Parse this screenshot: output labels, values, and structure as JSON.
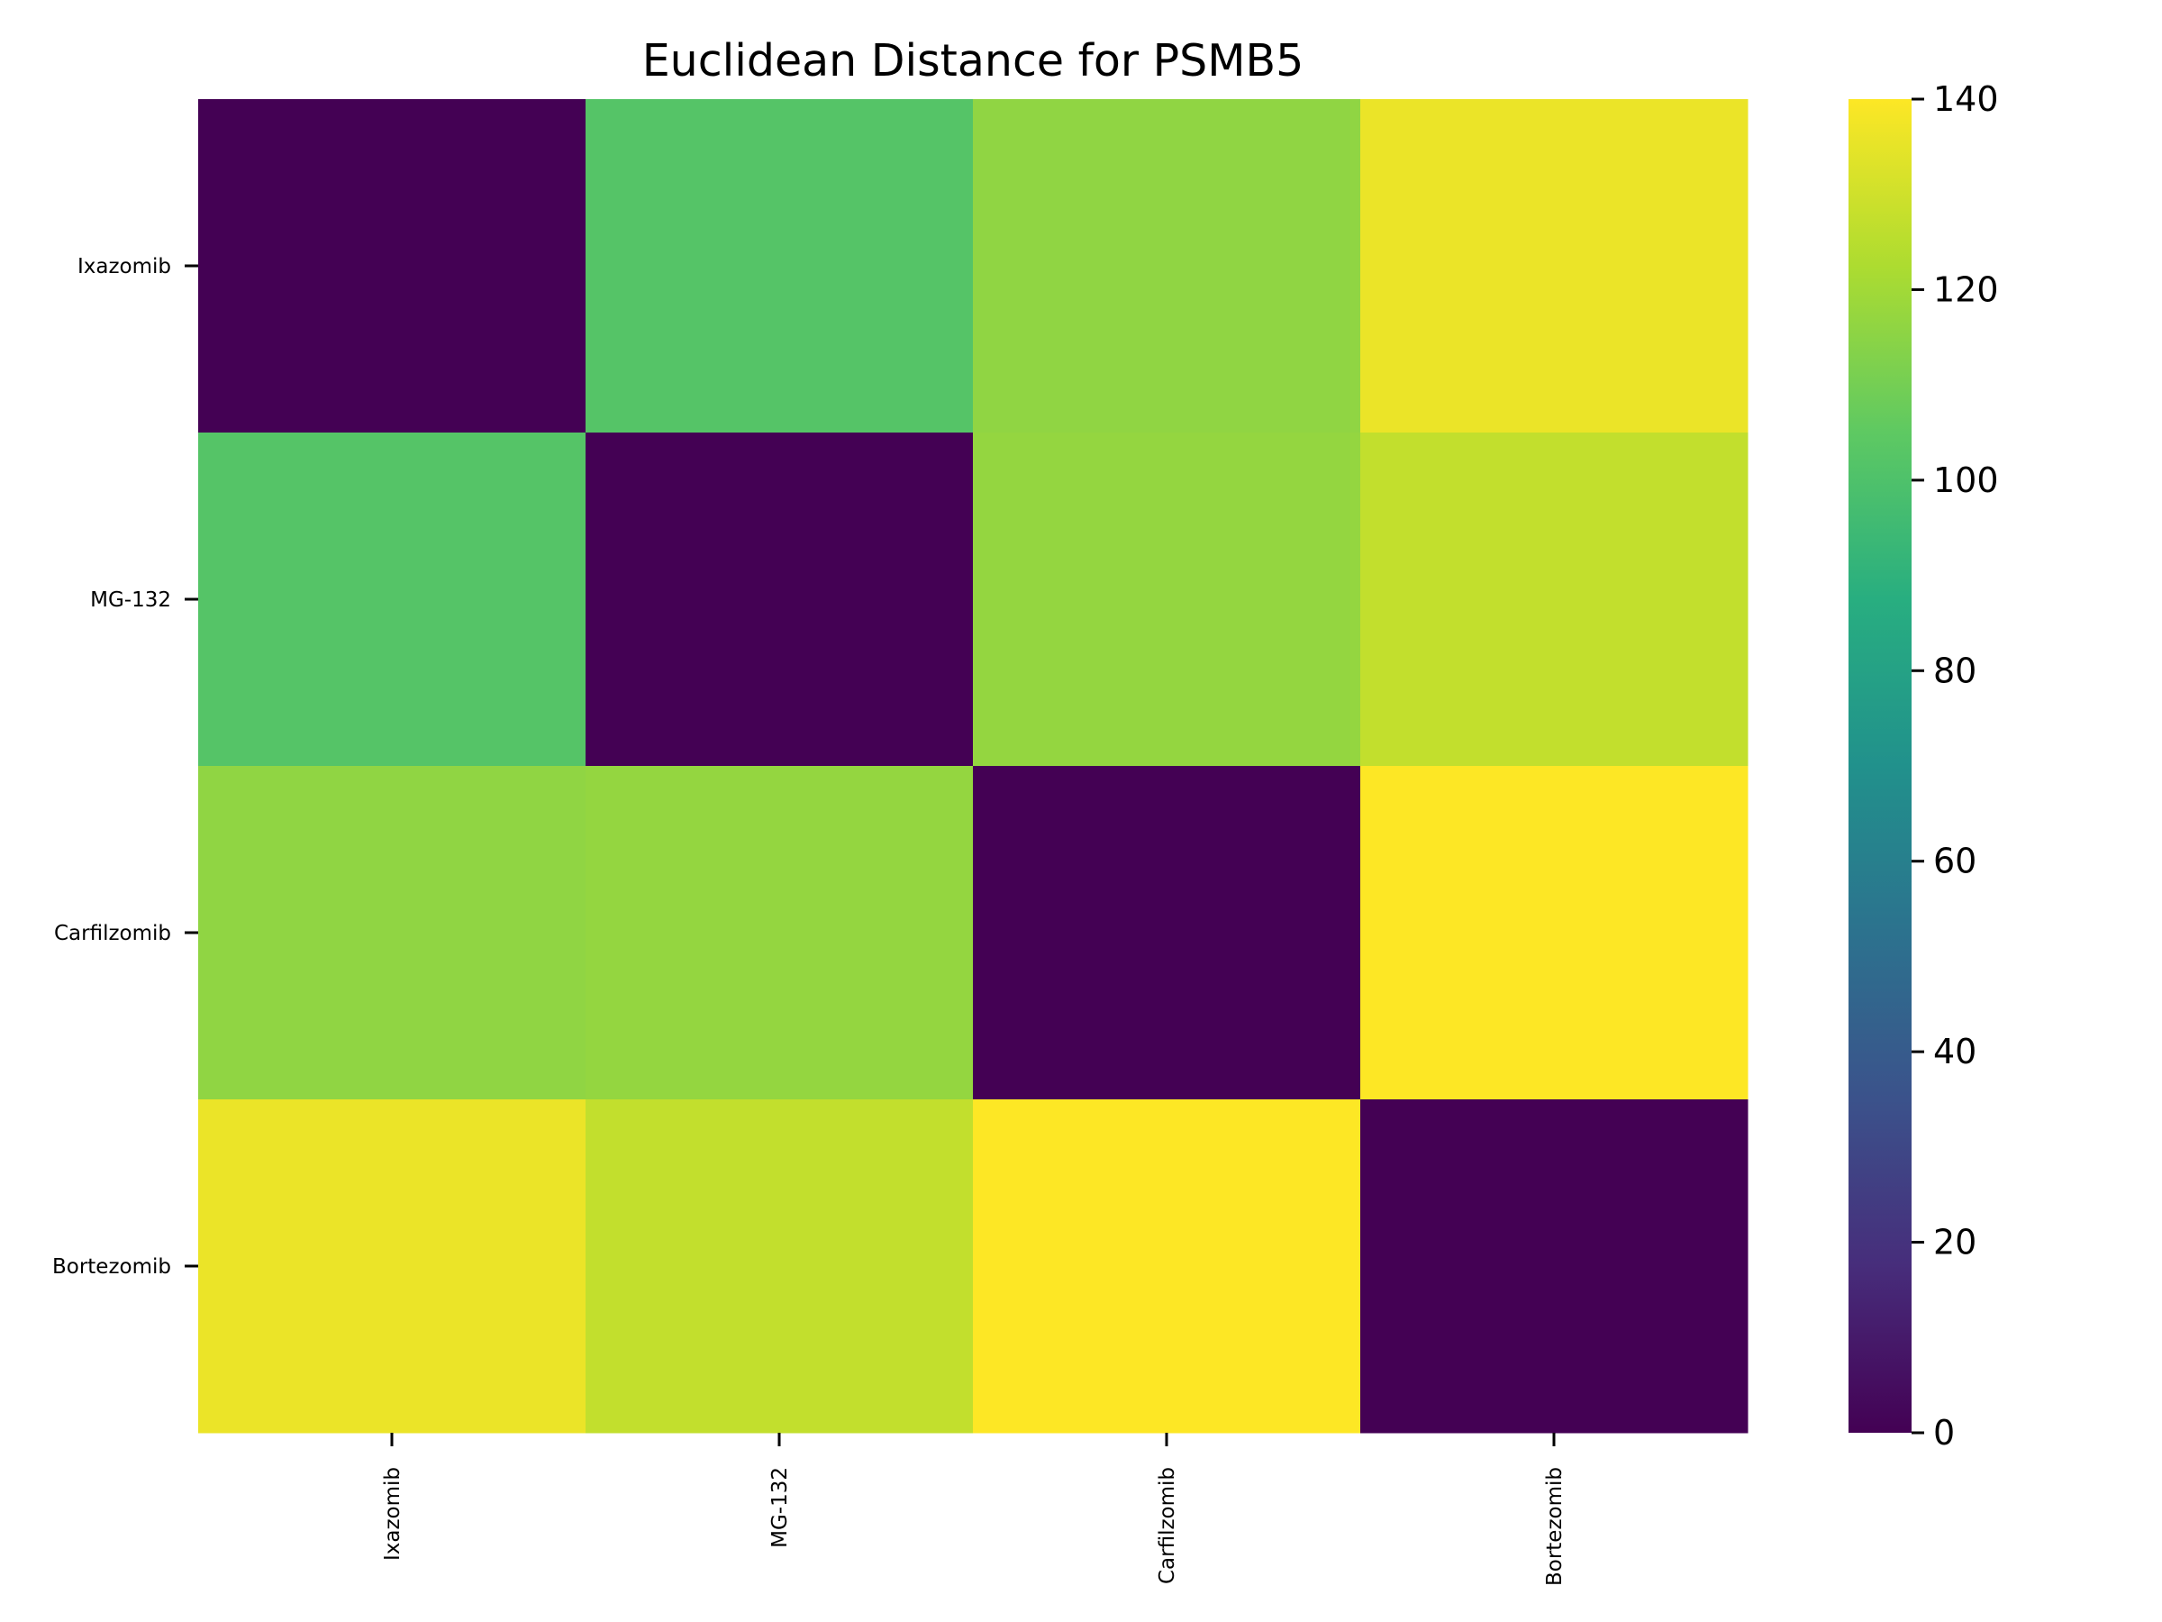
{
  "chart_data": {
    "type": "heatmap",
    "title": "Euclidean Distance for PSMB5",
    "xlabel": "",
    "ylabel": "",
    "rows": [
      "Ixazomib",
      "MG-132",
      "Carfilzomib",
      "Bortezomib"
    ],
    "columns": [
      "Ixazomib",
      "MG-132",
      "Carfilzomib",
      "Bortezomib"
    ],
    "values": [
      [
        0,
        102,
        116,
        136
      ],
      [
        102,
        0,
        117,
        127
      ],
      [
        116,
        117,
        0,
        140
      ],
      [
        136,
        127,
        140,
        0
      ]
    ],
    "colormap": "viridis",
    "vmin": 0,
    "vmax": 140,
    "colorbar": {
      "ticks": [
        0,
        20,
        40,
        60,
        80,
        100,
        120,
        140
      ],
      "tick_labels": [
        "0",
        "20",
        "40",
        "60",
        "80",
        "100",
        "120",
        "140"
      ]
    },
    "grid": false,
    "legend": "colorbar-right"
  }
}
